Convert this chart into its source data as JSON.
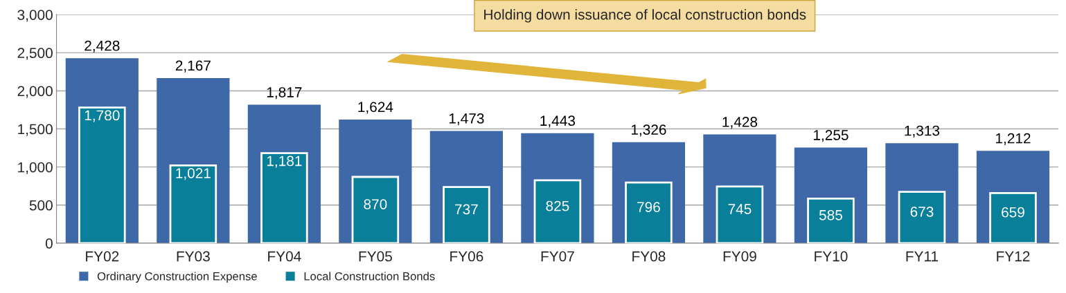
{
  "chart_data": {
    "type": "bar",
    "categories": [
      "FY02",
      "FY03",
      "FY04",
      "FY05",
      "FY06",
      "FY07",
      "FY08",
      "FY09",
      "FY10",
      "FY11",
      "FY12"
    ],
    "series": [
      {
        "name": "Ordinary Construction Expense",
        "color": "#3e68a7",
        "values": [
          2428,
          2167,
          1817,
          1624,
          1473,
          1443,
          1326,
          1428,
          1255,
          1313,
          1212
        ],
        "value_labels": [
          "2,428",
          "2,167",
          "1,817",
          "1,624",
          "1,473",
          "1,443",
          "1,326",
          "1,428",
          "1,255",
          "1,313",
          "1,212"
        ]
      },
      {
        "name": "Local Construction Bonds",
        "color": "#0a7f99",
        "values": [
          1780,
          1021,
          1181,
          870,
          737,
          825,
          796,
          745,
          585,
          673,
          659
        ],
        "value_labels": [
          "1,780",
          "1,021",
          "1,181",
          "870",
          "737",
          "825",
          "796",
          "745",
          "585",
          "673",
          "659"
        ]
      }
    ],
    "ylim": [
      0,
      3000
    ],
    "yticks": [
      0,
      500,
      {
        "value": 1000,
        "label": "1,000"
      },
      {
        "value": 1500,
        "label": "1,500"
      },
      {
        "value": 2000,
        "label": "2,000"
      },
      {
        "value": 2500,
        "label": "2,500"
      },
      {
        "value": 3000,
        "label": "3,000"
      }
    ],
    "grid": "y",
    "legend": "bottom left",
    "annotations": [
      "Holding down issuance of local construction bonds"
    ]
  }
}
